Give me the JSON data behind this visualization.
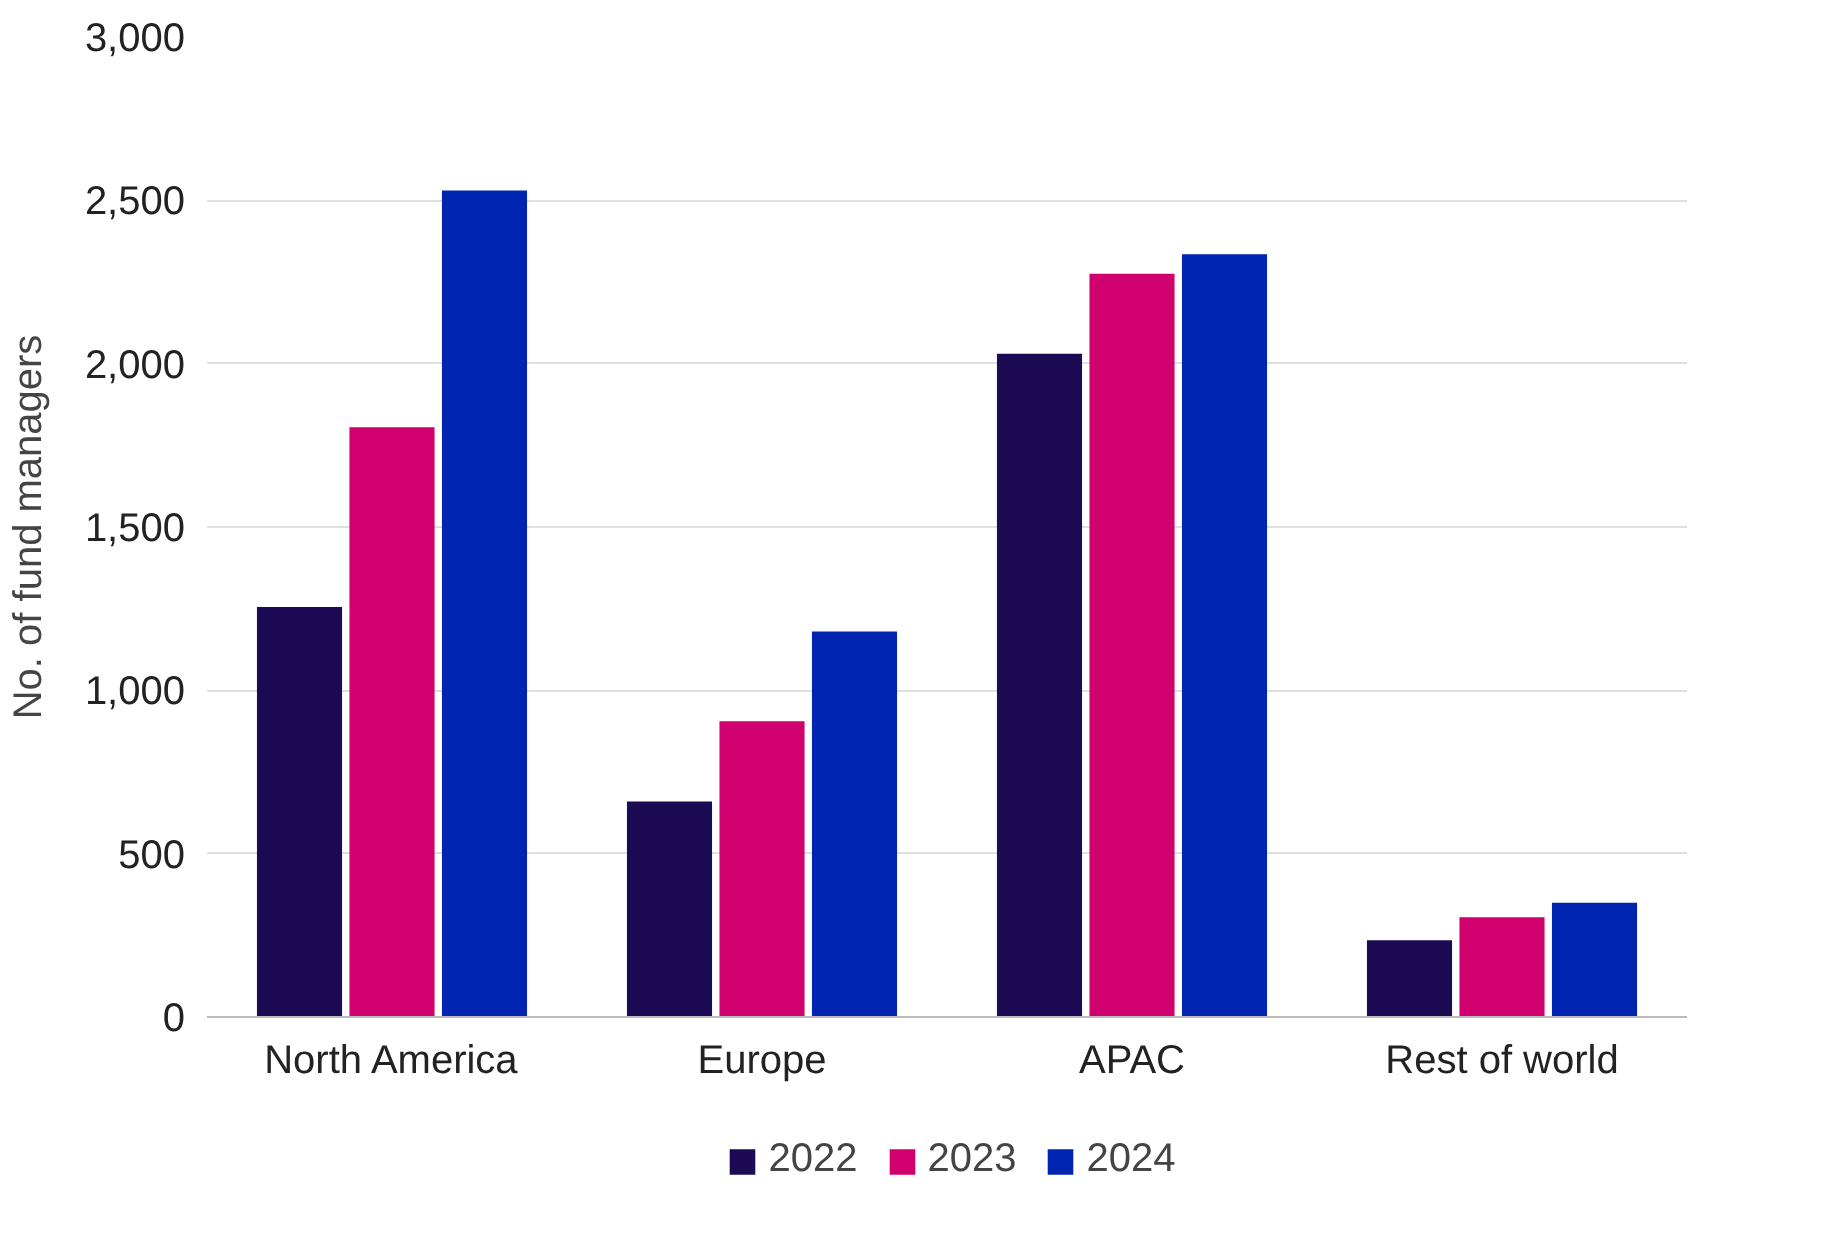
{
  "chart_data": {
    "type": "bar",
    "ylabel": "No. of fund managers",
    "categories": [
      "North America",
      "Europe",
      "APAC",
      "Rest of world"
    ],
    "series": [
      {
        "name": "2022",
        "color": "#1d0a55",
        "values": [
          1255,
          660,
          2030,
          235
        ]
      },
      {
        "name": "2023",
        "color": "#d0006f",
        "values": [
          1805,
          905,
          2275,
          305
        ]
      },
      {
        "name": "2024",
        "color": "#0025b0",
        "values": [
          2530,
          1180,
          2335,
          350
        ]
      }
    ],
    "ylim": [
      0,
      3000
    ],
    "yticks": [
      {
        "value": 0,
        "label": "0"
      },
      {
        "value": 500,
        "label": "500"
      },
      {
        "value": 1000,
        "label": "1,000"
      },
      {
        "value": 1500,
        "label": "1,500"
      },
      {
        "value": 2000,
        "label": "2,000"
      },
      {
        "value": 2500,
        "label": "2,500"
      },
      {
        "value": 3000,
        "label": "3,000"
      }
    ],
    "grid": "y",
    "legend": "bottom"
  }
}
